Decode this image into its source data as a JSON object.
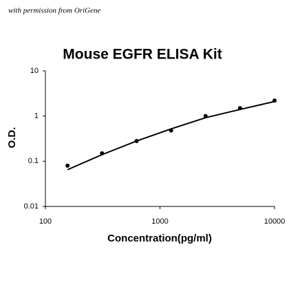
{
  "annotation": "with permission from OriGene",
  "chart_data": {
    "type": "scatter",
    "title": "Mouse EGFR ELISA Kit",
    "x_label": "Concentration(pg/ml)",
    "y_label": "O.D.",
    "xscale": "log",
    "yscale": "log",
    "xlim": [
      100,
      10000
    ],
    "ylim": [
      0.01,
      10
    ],
    "xticks": [
      100,
      1000,
      10000
    ],
    "yticks": [
      0.01,
      0.1,
      1,
      10
    ],
    "series": [
      {
        "type": "scatter",
        "color": "#000000",
        "x": [
          156,
          312,
          625,
          1250,
          2500,
          5000,
          10000
        ],
        "values": [
          0.08,
          0.15,
          0.28,
          0.48,
          1.0,
          1.5,
          2.2
        ]
      },
      {
        "type": "line",
        "color": "#000000",
        "x": [
          156,
          312,
          625,
          1250,
          2500,
          5000,
          10000
        ],
        "values": [
          0.065,
          0.14,
          0.28,
          0.52,
          0.92,
          1.4,
          2.1
        ]
      }
    ]
  }
}
